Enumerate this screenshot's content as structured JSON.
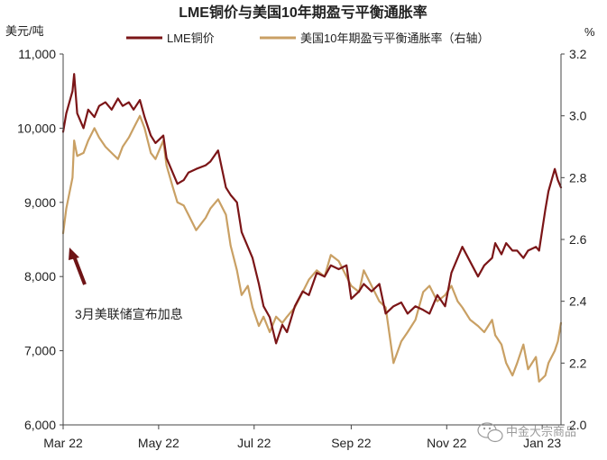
{
  "chart_data": {
    "type": "line",
    "title": "LME铜价与美国10年期盈亏平衡通胀率",
    "left_axis": {
      "unit_label": "美元/吨",
      "ylim": [
        6000,
        11000
      ],
      "ticks": [
        6000,
        7000,
        8000,
        9000,
        10000,
        11000
      ],
      "tick_labels": [
        "6,000",
        "7,000",
        "8,000",
        "9,000",
        "10,000",
        "11,000"
      ]
    },
    "right_axis": {
      "unit_label": "%",
      "ylim": [
        2.0,
        3.2
      ],
      "ticks": [
        2.0,
        2.2,
        2.4,
        2.6,
        2.8,
        3.0,
        3.2
      ],
      "tick_labels": [
        "2.0",
        "2.2",
        "2.4",
        "2.6",
        "2.8",
        "3.0",
        "3.2"
      ]
    },
    "x_axis": {
      "xlim": [
        "2022-03-01",
        "2023-01-13"
      ],
      "ticks": [
        "2022-03-01",
        "2022-05-01",
        "2022-07-01",
        "2022-09-01",
        "2022-11-01",
        "2023-01-01"
      ],
      "tick_labels": [
        "Mar 22",
        "May 22",
        "Jul 22",
        "Sep 22",
        "Nov 22",
        "Jan 23"
      ]
    },
    "grid": false,
    "legend_position": "top-center",
    "series": [
      {
        "name": "LME铜价",
        "axis": "left",
        "color": "#7B1517",
        "points": [
          [
            "2022-03-01",
            9950
          ],
          [
            "2022-03-03",
            10200
          ],
          [
            "2022-03-07",
            10500
          ],
          [
            "2022-03-08",
            10730
          ],
          [
            "2022-03-10",
            10200
          ],
          [
            "2022-03-14",
            10000
          ],
          [
            "2022-03-17",
            10250
          ],
          [
            "2022-03-21",
            10150
          ],
          [
            "2022-03-24",
            10300
          ],
          [
            "2022-03-28",
            10350
          ],
          [
            "2022-04-01",
            10250
          ],
          [
            "2022-04-05",
            10400
          ],
          [
            "2022-04-08",
            10300
          ],
          [
            "2022-04-12",
            10350
          ],
          [
            "2022-04-15",
            10250
          ],
          [
            "2022-04-19",
            10380
          ],
          [
            "2022-04-22",
            10150
          ],
          [
            "2022-04-26",
            9900
          ],
          [
            "2022-04-29",
            9800
          ],
          [
            "2022-05-04",
            9900
          ],
          [
            "2022-05-06",
            9600
          ],
          [
            "2022-05-10",
            9400
          ],
          [
            "2022-05-13",
            9250
          ],
          [
            "2022-05-17",
            9300
          ],
          [
            "2022-05-20",
            9400
          ],
          [
            "2022-05-25",
            9450
          ],
          [
            "2022-05-31",
            9500
          ],
          [
            "2022-06-03",
            9550
          ],
          [
            "2022-06-08",
            9700
          ],
          [
            "2022-06-13",
            9200
          ],
          [
            "2022-06-16",
            9100
          ],
          [
            "2022-06-20",
            9000
          ],
          [
            "2022-06-23",
            8600
          ],
          [
            "2022-06-27",
            8400
          ],
          [
            "2022-06-30",
            8250
          ],
          [
            "2022-07-04",
            7900
          ],
          [
            "2022-07-07",
            7600
          ],
          [
            "2022-07-11",
            7450
          ],
          [
            "2022-07-15",
            7100
          ],
          [
            "2022-07-19",
            7350
          ],
          [
            "2022-07-22",
            7250
          ],
          [
            "2022-07-27",
            7600
          ],
          [
            "2022-08-01",
            7800
          ],
          [
            "2022-08-05",
            7750
          ],
          [
            "2022-08-10",
            8050
          ],
          [
            "2022-08-15",
            8000
          ],
          [
            "2022-08-19",
            8150
          ],
          [
            "2022-08-24",
            8100
          ],
          [
            "2022-08-29",
            8150
          ],
          [
            "2022-09-01",
            7700
          ],
          [
            "2022-09-06",
            7800
          ],
          [
            "2022-09-09",
            7900
          ],
          [
            "2022-09-14",
            7800
          ],
          [
            "2022-09-19",
            7900
          ],
          [
            "2022-09-23",
            7500
          ],
          [
            "2022-09-28",
            7600
          ],
          [
            "2022-10-03",
            7650
          ],
          [
            "2022-10-07",
            7500
          ],
          [
            "2022-10-12",
            7600
          ],
          [
            "2022-10-17",
            7550
          ],
          [
            "2022-10-21",
            7500
          ],
          [
            "2022-10-26",
            7750
          ],
          [
            "2022-10-31",
            7600
          ],
          [
            "2022-11-04",
            8050
          ],
          [
            "2022-11-08",
            8250
          ],
          [
            "2022-11-11",
            8400
          ],
          [
            "2022-11-16",
            8200
          ],
          [
            "2022-11-21",
            8000
          ],
          [
            "2022-11-25",
            8150
          ],
          [
            "2022-11-30",
            8250
          ],
          [
            "2022-12-02",
            8450
          ],
          [
            "2022-12-06",
            8300
          ],
          [
            "2022-12-09",
            8450
          ],
          [
            "2022-12-13",
            8350
          ],
          [
            "2022-12-16",
            8350
          ],
          [
            "2022-12-20",
            8250
          ],
          [
            "2022-12-23",
            8350
          ],
          [
            "2022-12-28",
            8400
          ],
          [
            "2022-12-30",
            8350
          ],
          [
            "2023-01-03",
            8900
          ],
          [
            "2023-01-05",
            9150
          ],
          [
            "2023-01-09",
            9450
          ],
          [
            "2023-01-11",
            9300
          ],
          [
            "2023-01-13",
            9200
          ]
        ]
      },
      {
        "name": "美国10年期盈亏平衡通胀率（右轴）",
        "axis": "right",
        "color": "#C9A064",
        "points": [
          [
            "2022-03-01",
            2.62
          ],
          [
            "2022-03-03",
            2.7
          ],
          [
            "2022-03-07",
            2.8
          ],
          [
            "2022-03-08",
            2.92
          ],
          [
            "2022-03-10",
            2.87
          ],
          [
            "2022-03-14",
            2.88
          ],
          [
            "2022-03-17",
            2.92
          ],
          [
            "2022-03-21",
            2.96
          ],
          [
            "2022-03-24",
            2.93
          ],
          [
            "2022-03-28",
            2.9
          ],
          [
            "2022-04-01",
            2.88
          ],
          [
            "2022-04-05",
            2.86
          ],
          [
            "2022-04-08",
            2.9
          ],
          [
            "2022-04-12",
            2.93
          ],
          [
            "2022-04-15",
            2.96
          ],
          [
            "2022-04-19",
            3.0
          ],
          [
            "2022-04-22",
            2.96
          ],
          [
            "2022-04-26",
            2.88
          ],
          [
            "2022-04-29",
            2.86
          ],
          [
            "2022-05-04",
            2.92
          ],
          [
            "2022-05-06",
            2.84
          ],
          [
            "2022-05-10",
            2.77
          ],
          [
            "2022-05-13",
            2.72
          ],
          [
            "2022-05-17",
            2.71
          ],
          [
            "2022-05-20",
            2.68
          ],
          [
            "2022-05-25",
            2.63
          ],
          [
            "2022-05-31",
            2.67
          ],
          [
            "2022-06-03",
            2.7
          ],
          [
            "2022-06-08",
            2.73
          ],
          [
            "2022-06-13",
            2.68
          ],
          [
            "2022-06-16",
            2.58
          ],
          [
            "2022-06-20",
            2.5
          ],
          [
            "2022-06-23",
            2.42
          ],
          [
            "2022-06-27",
            2.45
          ],
          [
            "2022-06-30",
            2.38
          ],
          [
            "2022-07-04",
            2.32
          ],
          [
            "2022-07-07",
            2.35
          ],
          [
            "2022-07-11",
            2.3
          ],
          [
            "2022-07-15",
            2.35
          ],
          [
            "2022-07-19",
            2.33
          ],
          [
            "2022-07-22",
            2.35
          ],
          [
            "2022-07-27",
            2.38
          ],
          [
            "2022-08-01",
            2.43
          ],
          [
            "2022-08-05",
            2.47
          ],
          [
            "2022-08-10",
            2.5
          ],
          [
            "2022-08-15",
            2.48
          ],
          [
            "2022-08-19",
            2.55
          ],
          [
            "2022-08-24",
            2.53
          ],
          [
            "2022-08-29",
            2.48
          ],
          [
            "2022-09-01",
            2.45
          ],
          [
            "2022-09-06",
            2.43
          ],
          [
            "2022-09-09",
            2.5
          ],
          [
            "2022-09-14",
            2.45
          ],
          [
            "2022-09-19",
            2.4
          ],
          [
            "2022-09-23",
            2.38
          ],
          [
            "2022-09-28",
            2.2
          ],
          [
            "2022-10-03",
            2.27
          ],
          [
            "2022-10-07",
            2.3
          ],
          [
            "2022-10-12",
            2.34
          ],
          [
            "2022-10-17",
            2.43
          ],
          [
            "2022-10-21",
            2.45
          ],
          [
            "2022-10-26",
            2.4
          ],
          [
            "2022-10-31",
            2.42
          ],
          [
            "2022-11-04",
            2.45
          ],
          [
            "2022-11-08",
            2.4
          ],
          [
            "2022-11-11",
            2.38
          ],
          [
            "2022-11-16",
            2.34
          ],
          [
            "2022-11-21",
            2.32
          ],
          [
            "2022-11-25",
            2.3
          ],
          [
            "2022-11-30",
            2.34
          ],
          [
            "2022-12-02",
            2.29
          ],
          [
            "2022-12-06",
            2.26
          ],
          [
            "2022-12-09",
            2.2
          ],
          [
            "2022-12-13",
            2.16
          ],
          [
            "2022-12-16",
            2.2
          ],
          [
            "2022-12-20",
            2.26
          ],
          [
            "2022-12-23",
            2.18
          ],
          [
            "2022-12-28",
            2.22
          ],
          [
            "2022-12-30",
            2.14
          ],
          [
            "2023-01-03",
            2.16
          ],
          [
            "2023-01-05",
            2.2
          ],
          [
            "2023-01-09",
            2.24
          ],
          [
            "2023-01-11",
            2.27
          ],
          [
            "2023-01-13",
            2.33
          ]
        ]
      }
    ],
    "annotation": {
      "text": "3月美联储宣布加息"
    }
  },
  "watermark": {
    "text": "中金大宗商品",
    "icon": "wechat-icon"
  }
}
